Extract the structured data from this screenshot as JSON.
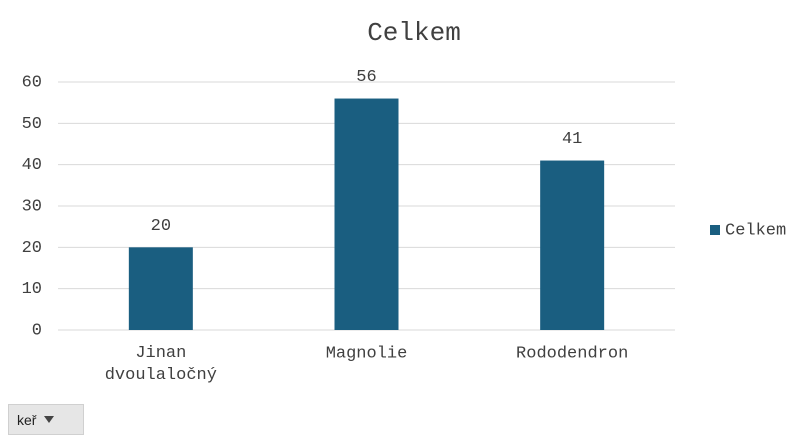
{
  "chart_data": {
    "type": "bar",
    "title": "Celkem",
    "categories": [
      "Jinan dvoulaločný",
      "Magnolie",
      "Rododendron"
    ],
    "series": [
      {
        "name": "Celkem",
        "color": "#1a5e80",
        "values": [
          20,
          56,
          41
        ]
      }
    ],
    "ylim": [
      0,
      60
    ],
    "yticks": [
      0,
      10,
      20,
      30,
      40,
      50,
      60
    ],
    "grid": true,
    "legend": "right",
    "data_labels": true
  },
  "filter": {
    "label": "keř"
  }
}
